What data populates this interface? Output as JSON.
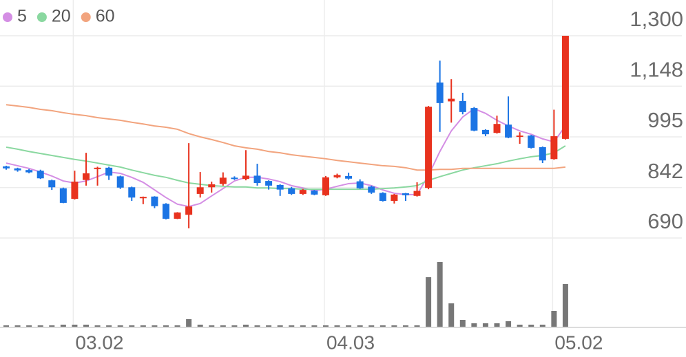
{
  "chart_data": {
    "type": "candlestick",
    "categories": [
      null,
      null,
      null,
      null,
      null,
      null,
      "03.02",
      null,
      null,
      null,
      null,
      null,
      null,
      null,
      null,
      null,
      null,
      null,
      null,
      null,
      null,
      null,
      null,
      null,
      null,
      null,
      null,
      null,
      "04.03",
      null,
      null,
      null,
      null,
      null,
      null,
      null,
      null,
      null,
      null,
      null,
      null,
      null,
      null,
      null,
      null,
      null,
      null,
      null,
      "05.02",
      null
    ],
    "open": [
      906,
      900,
      895,
      893,
      864,
      840,
      808,
      865,
      898,
      902,
      876,
      843,
      810,
      815,
      793,
      748,
      760,
      823,
      843,
      853,
      872,
      868,
      878,
      862,
      850,
      840,
      823,
      833,
      819,
      873,
      877,
      861,
      845,
      826,
      802,
      825,
      817,
      841,
      1159,
      1102,
      1103,
      1082,
      1016,
      1007,
      1032,
      995,
      999,
      964,
      928,
      989
    ],
    "high": [
      908,
      902,
      898,
      896,
      866,
      842,
      893,
      947,
      905,
      905,
      878,
      845,
      815,
      816,
      795,
      768,
      976,
      889,
      860,
      888,
      876,
      955,
      914,
      864,
      852,
      844,
      838,
      835,
      877,
      884,
      887,
      867,
      848,
      828,
      823,
      826,
      858,
      1088,
      1225,
      1169,
      1128,
      1085,
      1018,
      1059,
      1117,
      1009,
      1001,
      966,
      1077,
      1300
    ],
    "low": [
      896,
      890,
      885,
      868,
      835,
      795,
      806,
      848,
      848,
      865,
      838,
      802,
      792,
      780,
      746,
      747,
      719,
      812,
      827,
      848,
      865,
      864,
      848,
      836,
      817,
      820,
      820,
      819,
      817,
      870,
      866,
      838,
      823,
      800,
      794,
      802,
      815,
      837,
      1010,
      1038,
      1063,
      1012,
      997,
      1005,
      991,
      974,
      960,
      916,
      926,
      987
    ],
    "close": [
      900,
      894,
      888,
      870,
      843,
      796,
      860,
      885,
      902,
      878,
      842,
      812,
      814,
      786,
      748,
      767,
      785,
      843,
      852,
      872,
      868,
      878,
      856,
      848,
      836,
      823,
      835,
      821,
      873,
      880,
      869,
      840,
      827,
      802,
      821,
      819,
      832,
      1086,
      1097,
      1110,
      1070,
      1014,
      1003,
      1034,
      993,
      999,
      962,
      924,
      997,
      1300
    ],
    "up_color": "#e8321e",
    "down_color": "#1b74e4",
    "ylim": [
      690,
      1300
    ],
    "yticks": [
      {
        "value": 1300,
        "label": "1,300"
      },
      {
        "value": 1148,
        "label": "1,148"
      },
      995,
      842,
      690
    ],
    "grid": true,
    "series": [
      {
        "name": "5",
        "color": "#d48ee4",
        "values": [
          916,
          908,
          900,
          889,
          877,
          862,
          856,
          862,
          875,
          889,
          885,
          873,
          858,
          835,
          812,
          792,
          785,
          794,
          817,
          839,
          862,
          873,
          873,
          868,
          860,
          848,
          841,
          833,
          837,
          846,
          854,
          856,
          848,
          835,
          825,
          821,
          821,
          879,
          951,
          1013,
          1055,
          1080,
          1066,
          1045,
          1028,
          1013,
          1003,
          989,
          980,
          1028
        ]
      },
      {
        "name": "20",
        "color": "#8ad8a0",
        "values": [
          964,
          958,
          951,
          945,
          939,
          933,
          927,
          922,
          916,
          910,
          904,
          895,
          887,
          879,
          873,
          864,
          856,
          852,
          848,
          846,
          844,
          844,
          841,
          841,
          839,
          839,
          837,
          837,
          837,
          837,
          837,
          837,
          837,
          839,
          841,
          844,
          848,
          864,
          875,
          885,
          895,
          902,
          908,
          914,
          922,
          929,
          935,
          939,
          947,
          968
        ]
      },
      {
        "name": "60",
        "color": "#f2a47e",
        "values": [
          1092,
          1088,
          1084,
          1078,
          1074,
          1068,
          1063,
          1059,
          1053,
          1049,
          1045,
          1039,
          1034,
          1028,
          1024,
          1018,
          1005,
          995,
          987,
          978,
          968,
          962,
          958,
          951,
          947,
          941,
          937,
          933,
          929,
          924,
          920,
          916,
          912,
          908,
          906,
          902,
          895,
          895,
          897,
          897,
          900,
          900,
          900,
          900,
          900,
          900,
          900,
          900,
          900,
          904
        ]
      }
    ],
    "volume": {
      "color": "#777777",
      "ylim": [
        0,
        130
      ],
      "values": [
        2,
        2,
        2,
        2,
        2,
        3,
        3,
        3,
        2,
        2,
        2,
        2,
        2,
        2,
        2,
        2,
        11,
        3,
        2,
        2,
        2,
        3,
        2,
        2,
        2,
        2,
        2,
        2,
        2,
        2,
        2,
        2,
        2,
        2,
        2,
        2,
        2,
        72,
        94,
        34,
        10,
        5,
        5,
        5,
        8,
        3,
        3,
        3,
        23,
        62
      ]
    }
  }
}
